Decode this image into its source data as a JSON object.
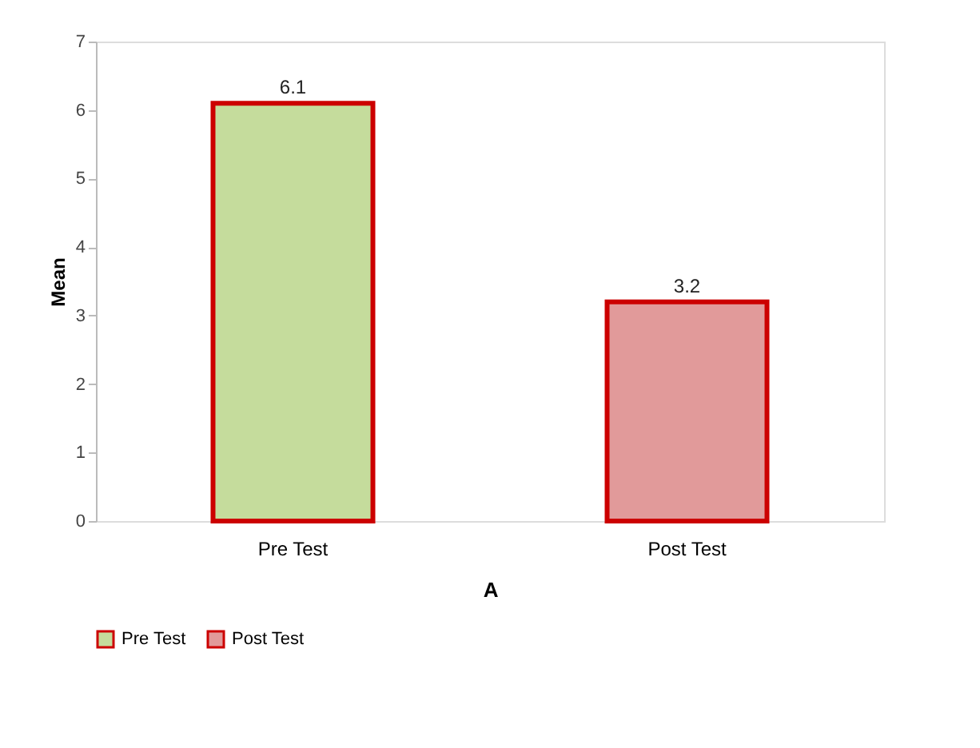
{
  "chart_data": {
    "type": "bar",
    "xlabel": "A",
    "ylabel": "Mean",
    "categories": [
      "Pre Test",
      "Post Test"
    ],
    "series": [
      {
        "name": "Pre Test",
        "color": "#c5dc9c",
        "values": [
          6.1,
          null
        ]
      },
      {
        "name": "Post Test",
        "color": "#e19a9a",
        "values": [
          null,
          3.2
        ]
      }
    ],
    "ylim": [
      0,
      7
    ],
    "yticks": [
      0,
      1,
      2,
      3,
      4,
      5,
      6,
      7
    ],
    "data_labels": true,
    "grid": false,
    "legend": "bottom"
  }
}
